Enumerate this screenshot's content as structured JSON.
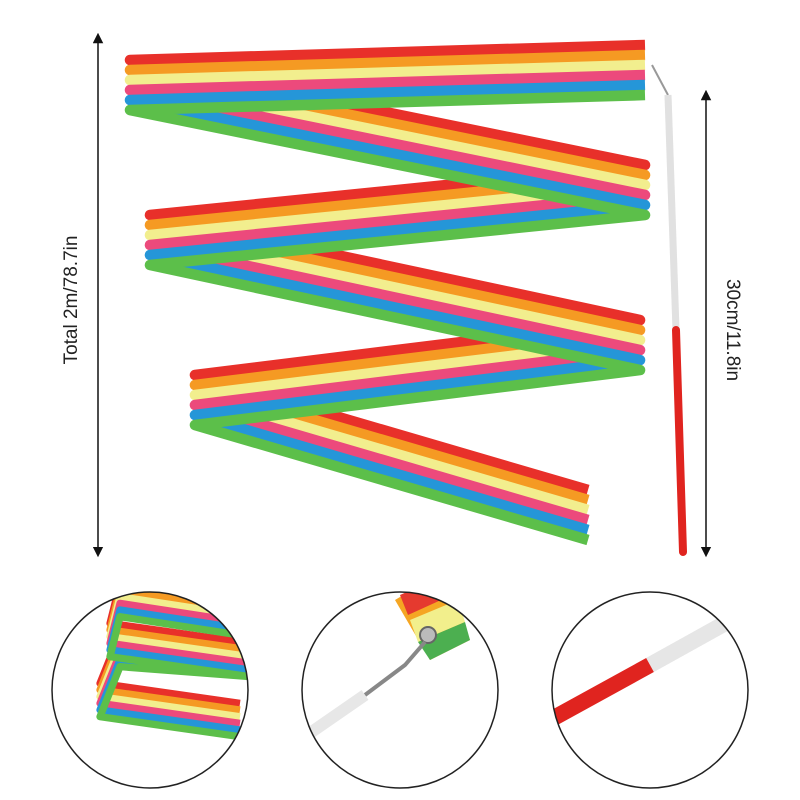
{
  "dimensions": {
    "ribbon_length": "Total 2m/78.7in",
    "stick_length": "30cm/11.8in"
  }
}
